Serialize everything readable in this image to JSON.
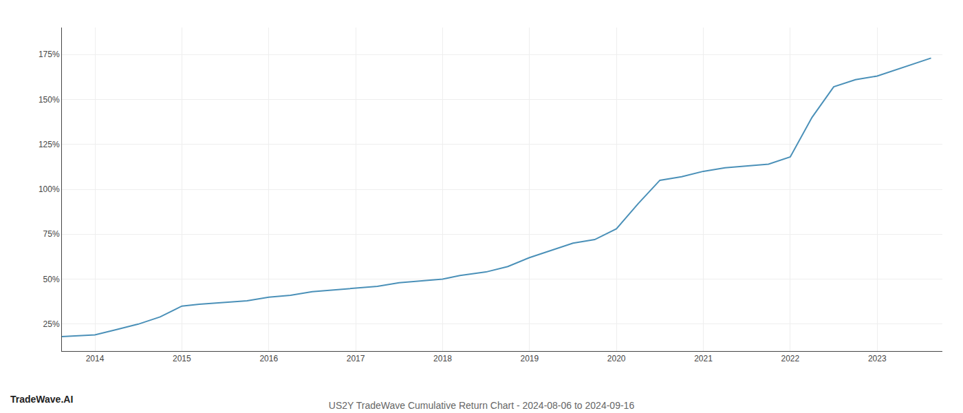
{
  "chart_data": {
    "type": "line",
    "title": "US2Y TradeWave Cumulative Return Chart - 2024-08-06 to 2024-09-16",
    "annotations": [
      "TradeWave.AI"
    ],
    "x": [
      2013.62,
      2014.0,
      2014.25,
      2014.5,
      2014.75,
      2015.0,
      2015.2,
      2015.5,
      2015.75,
      2016.0,
      2016.25,
      2016.5,
      2016.75,
      2017.0,
      2017.25,
      2017.5,
      2017.75,
      2018.0,
      2018.2,
      2018.5,
      2018.75,
      2019.0,
      2019.25,
      2019.5,
      2019.75,
      2020.0,
      2020.25,
      2020.5,
      2020.75,
      2021.0,
      2021.25,
      2021.5,
      2021.75,
      2022.0,
      2022.25,
      2022.5,
      2022.75,
      2023.0,
      2023.25,
      2023.5,
      2023.62
    ],
    "values": [
      18,
      19,
      22,
      25,
      29,
      35,
      36,
      37,
      38,
      40,
      41,
      43,
      44,
      45,
      46,
      48,
      49,
      50,
      52,
      54,
      57,
      62,
      66,
      70,
      72,
      78,
      92,
      105,
      107,
      110,
      112,
      113,
      114,
      118,
      140,
      157,
      161,
      163,
      167,
      171,
      173
    ],
    "color": "#4a90b8",
    "xlim": [
      2013.62,
      2023.75
    ],
    "ylim": [
      10,
      190
    ],
    "xticks": [
      2014,
      2015,
      2016,
      2017,
      2018,
      2019,
      2020,
      2021,
      2022,
      2023
    ],
    "yticks": [
      {
        "value": 25,
        "label": "25%"
      },
      {
        "value": 50,
        "label": "50%"
      },
      {
        "value": 75,
        "label": "75%"
      },
      {
        "value": 100,
        "label": "100%"
      },
      {
        "value": 125,
        "label": "125%"
      },
      {
        "value": 150,
        "label": "150%"
      },
      {
        "value": 175,
        "label": "175%"
      }
    ],
    "grid": true
  }
}
